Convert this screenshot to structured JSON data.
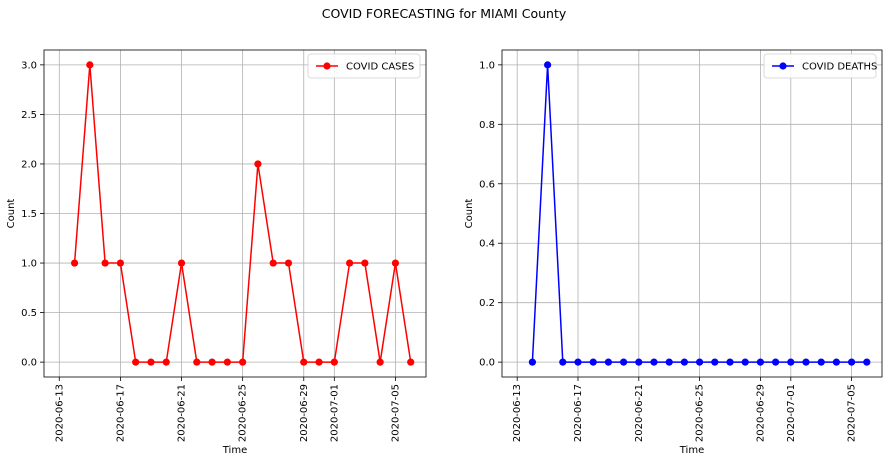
{
  "figure": {
    "title": "COVID FORECASTING for MIAMI County"
  },
  "chart_data": [
    {
      "type": "line",
      "title": "",
      "xlabel": "Time",
      "ylabel": "Count",
      "x_tick_labels": [
        "2020-06-13",
        "2020-06-17",
        "2020-06-21",
        "2020-06-25",
        "2020-06-29",
        "2020-07-01",
        "2020-07-05"
      ],
      "y_tick_labels": [
        "0.0",
        "0.5",
        "1.0",
        "1.5",
        "2.0",
        "2.5",
        "3.0"
      ],
      "xlim": [
        "2020-06-12",
        "2020-07-07"
      ],
      "ylim": [
        -0.15,
        3.15
      ],
      "grid": true,
      "legend_location": "top-right",
      "series": [
        {
          "name": "COVID CASES",
          "color": "#ff0000",
          "marker": "circle",
          "x": [
            "2020-06-14",
            "2020-06-15",
            "2020-06-16",
            "2020-06-17",
            "2020-06-18",
            "2020-06-19",
            "2020-06-20",
            "2020-06-21",
            "2020-06-22",
            "2020-06-23",
            "2020-06-24",
            "2020-06-25",
            "2020-06-26",
            "2020-06-27",
            "2020-06-28",
            "2020-06-29",
            "2020-06-30",
            "2020-07-01",
            "2020-07-02",
            "2020-07-03",
            "2020-07-04",
            "2020-07-05",
            "2020-07-06"
          ],
          "y": [
            1,
            3,
            1,
            1,
            0,
            0,
            0,
            1,
            0,
            0,
            0,
            0,
            2,
            1,
            1,
            0,
            0,
            0,
            1,
            1,
            0,
            1,
            0
          ]
        }
      ]
    },
    {
      "type": "line",
      "title": "",
      "xlabel": "Time",
      "ylabel": "Count",
      "x_tick_labels": [
        "2020-06-13",
        "2020-06-17",
        "2020-06-21",
        "2020-06-25",
        "2020-06-29",
        "2020-07-01",
        "2020-07-05"
      ],
      "y_tick_labels": [
        "0.0",
        "0.2",
        "0.4",
        "0.6",
        "0.8",
        "1.0"
      ],
      "xlim": [
        "2020-06-12",
        "2020-07-07"
      ],
      "ylim": [
        -0.05,
        1.05
      ],
      "grid": true,
      "legend_location": "top-right",
      "series": [
        {
          "name": "COVID DEATHS",
          "color": "#0000ff",
          "marker": "circle",
          "x": [
            "2020-06-14",
            "2020-06-15",
            "2020-06-16",
            "2020-06-17",
            "2020-06-18",
            "2020-06-19",
            "2020-06-20",
            "2020-06-21",
            "2020-06-22",
            "2020-06-23",
            "2020-06-24",
            "2020-06-25",
            "2020-06-26",
            "2020-06-27",
            "2020-06-28",
            "2020-06-29",
            "2020-06-30",
            "2020-07-01",
            "2020-07-02",
            "2020-07-03",
            "2020-07-04",
            "2020-07-05",
            "2020-07-06"
          ],
          "y": [
            0,
            1,
            0,
            0,
            0,
            0,
            0,
            0,
            0,
            0,
            0,
            0,
            0,
            0,
            0,
            0,
            0,
            0,
            0,
            0,
            0,
            0,
            0
          ]
        }
      ]
    }
  ]
}
